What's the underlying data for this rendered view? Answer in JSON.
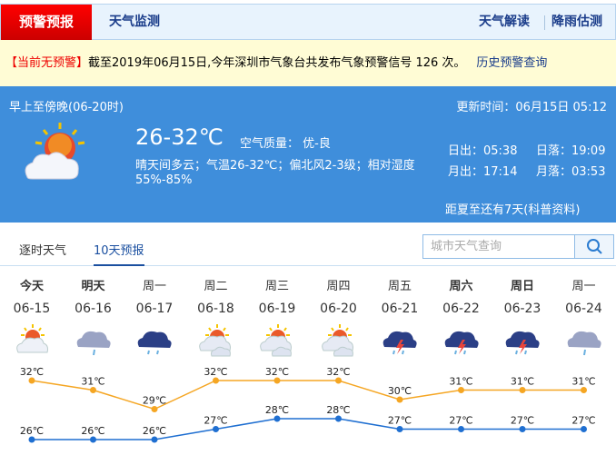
{
  "nav": {
    "active_tab": "预警预报",
    "tab2": "天气监测",
    "right1": "天气解读",
    "right2": "降雨估测"
  },
  "alert": {
    "status": "【当前无预警】",
    "text": "截至2019年06月15日,今年深圳市气象台共发布气象预警信号 126 次。",
    "history_link": "历史预警查询"
  },
  "today": {
    "period": "早上至傍晚(06-20时)",
    "updated": "更新时间：06月15日 05:12",
    "temp": "26-32℃",
    "aqi_label": "空气质量：",
    "aqi": "优-良",
    "desc": "晴天间多云；气温26-32℃；偏北风2-3级；相对湿度",
    "humidity": "55%-85%",
    "sunrise": "日出：05:38",
    "sunset": "日落：19:09",
    "moonrise": "月出：17:14",
    "moonset": "月落：03:53",
    "solstice": "距夏至还有7天(科普资料)",
    "icon": "sunny-cloudy-icon"
  },
  "tabs": {
    "hourly": "逐时天气",
    "ten_day": "10天预报"
  },
  "search": {
    "placeholder": "城市天气查询",
    "icon": "search-icon"
  },
  "colors": {
    "high": "#f5a623",
    "low": "#1f6fd1",
    "accent": "#3f8edb",
    "alert": "#ee0000"
  },
  "chart_data": {
    "type": "line",
    "days": [
      "今天",
      "明天",
      "周一",
      "周二",
      "周三",
      "周四",
      "周五",
      "周六",
      "周日",
      "周一"
    ],
    "bold": [
      true,
      true,
      false,
      false,
      false,
      false,
      false,
      true,
      true,
      false
    ],
    "categories": [
      "06-15",
      "06-16",
      "06-17",
      "06-18",
      "06-19",
      "06-20",
      "06-21",
      "06-22",
      "06-23",
      "06-24"
    ],
    "icons": [
      "sunny-cloudy",
      "cloudy-light-rain",
      "overcast-rain",
      "partly-cloudy",
      "partly-cloudy",
      "partly-cloudy",
      "thunderstorm",
      "thunderstorm",
      "thunderstorm",
      "cloudy-light-rain"
    ],
    "unit": "℃",
    "series": [
      {
        "key": "high",
        "values": [
          32,
          31,
          29,
          32,
          32,
          32,
          30,
          31,
          31,
          31
        ]
      },
      {
        "key": "low",
        "values": [
          26,
          26,
          26,
          27,
          28,
          28,
          27,
          27,
          27,
          27
        ]
      }
    ]
  }
}
